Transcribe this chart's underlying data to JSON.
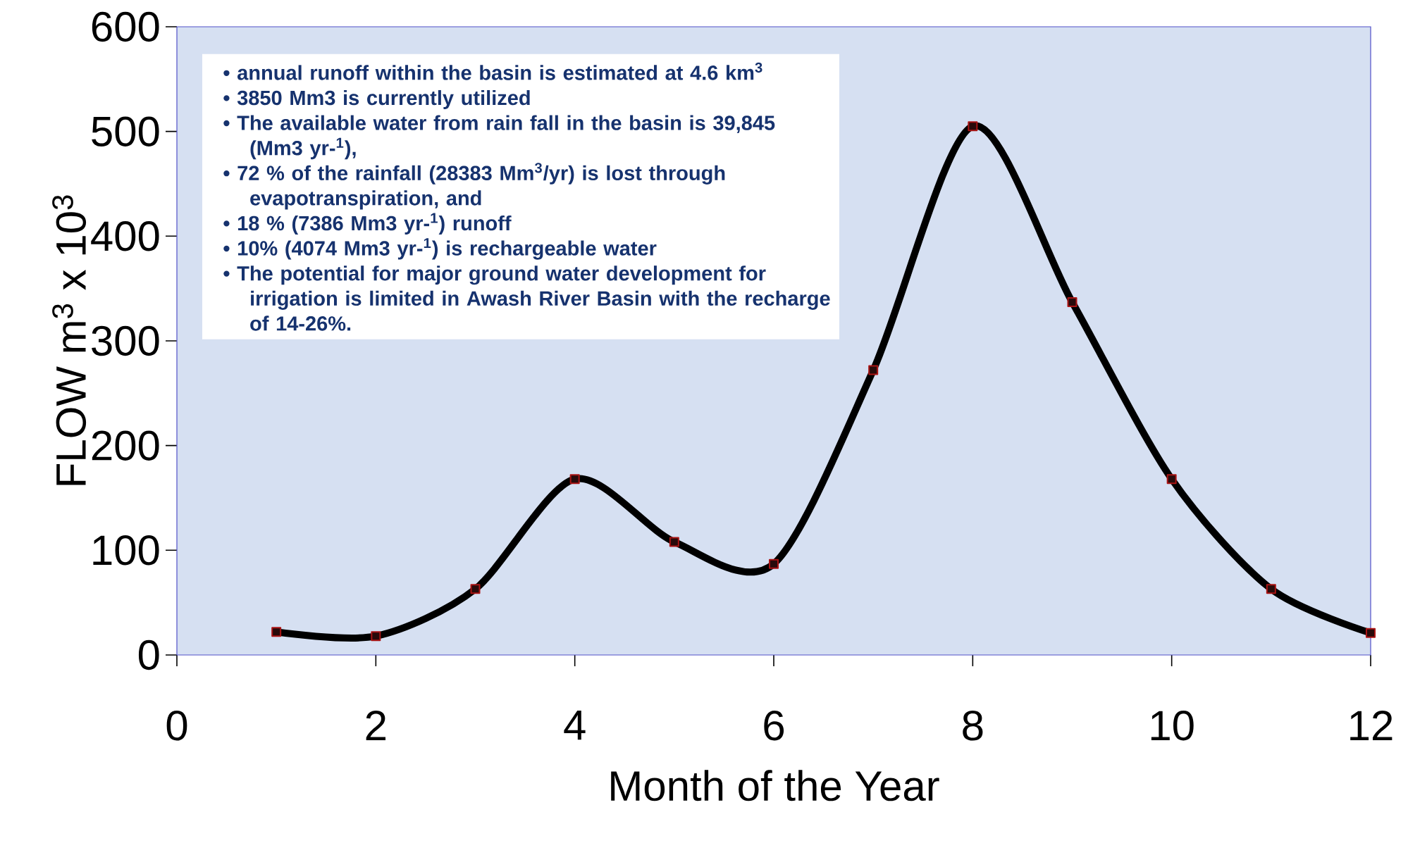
{
  "chart_data": {
    "type": "line",
    "xlabel": "Month of the Year",
    "ylabel": "FLOW  m$^{3}$ x 10$^{3}$",
    "x": [
      1,
      2,
      3,
      4,
      5,
      6,
      7,
      8,
      9,
      10,
      11,
      12
    ],
    "series": [
      {
        "color": "#000000",
        "values": [
          22,
          18,
          63,
          168,
          108,
          87,
          272,
          505,
          337,
          168,
          63,
          21
        ]
      }
    ],
    "marker": "square",
    "line_style": "solid",
    "xlim": [
      0,
      12
    ],
    "xticks": [
      0,
      2,
      4,
      6,
      8,
      10,
      12
    ],
    "ylim": [
      0,
      600
    ],
    "yticks": [
      0,
      100,
      200,
      300,
      400,
      500,
      600
    ],
    "annotations": [
      "•  annual runoff within the basin is estimated at 4.6 km$^{3}$",
      "•  3850 Mm3 is currently utilized",
      "•  The available water from rain fall in the basin is 39,845 (Mm3 yr-$^{1}$),",
      "•  72 % of the rainfall (28383 Mm$^{3}$/yr) is lost through evapotranspiration, and",
      "•  18 % (7386 Mm3 yr-$^{1}$) runoff",
      "•  10% (4074 Mm3 yr-$^{1}$) is rechargeable water",
      "•  The potential for major ground water development for irrigation is limited in Awash River Basin with the recharge of 14-26%."
    ]
  }
}
